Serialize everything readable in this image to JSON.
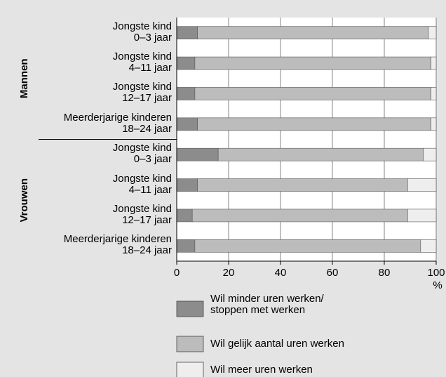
{
  "chart_data": {
    "type": "stacked-barh",
    "categories": [
      "Jongste kind\n0–3 jaar",
      "Jongste kind\n4–11 jaar",
      "Jongste kind\n12–17 jaar",
      "Meerderjarige kinderen\n18–24 jaar",
      "Jongste kind\n0–3 jaar",
      "Jongste kind\n4–11 jaar",
      "Jongste kind\n12–17 jaar",
      "Meerderjarige kinderen\n18–24 jaar"
    ],
    "groups": [
      {
        "name": "Mannen",
        "from": 0,
        "to": 3
      },
      {
        "name": "Vrouwen",
        "from": 4,
        "to": 7
      }
    ],
    "series": [
      {
        "name": "Wil minder uren werken/\nstoppen met werken",
        "color": "#8c8c8c",
        "values": [
          8,
          7,
          7,
          8,
          16,
          8,
          6,
          7
        ]
      },
      {
        "name": "Wil gelijk aantal uren werken",
        "color": "#bcbcbc",
        "values": [
          89,
          91,
          91,
          90,
          79,
          81,
          83,
          87
        ]
      },
      {
        "name": "Wil meer uren werken",
        "color": "#eeeeee",
        "values": [
          3,
          2,
          2,
          2,
          5,
          11,
          11,
          6
        ]
      }
    ],
    "xlim": [
      0,
      100
    ],
    "xticks": [
      0,
      20,
      40,
      60,
      80,
      100
    ],
    "xlabel": "%",
    "grid": true
  }
}
